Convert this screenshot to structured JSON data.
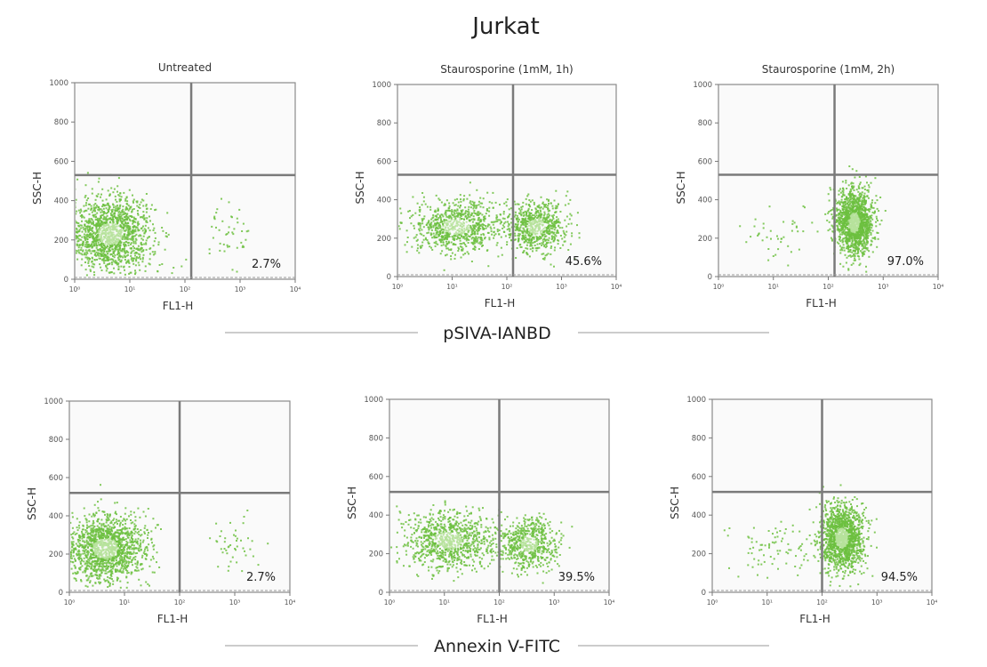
{
  "title": "Jurkat",
  "colors": {
    "dot": "#6cbf3f",
    "dot_light": "#b6e29b",
    "gate": "#7a7a7a",
    "frame": "#8a8a8a",
    "panel_bg": "#fafafa"
  },
  "chart_data": [
    {
      "type": "scatter",
      "row": "pSIVA-IANBD",
      "title": "Untreated",
      "xlabel": "FL1-H",
      "ylabel": "SSC-H",
      "x_scale": "log",
      "xlim": [
        1,
        10000
      ],
      "ylim": [
        0,
        1000
      ],
      "x_ticks": [
        1,
        10,
        100,
        1000,
        10000
      ],
      "y_ticks": [
        0,
        200,
        400,
        600,
        800,
        1000
      ],
      "x_tick_labels": [
        "10⁰",
        "10¹",
        "10²",
        "10³",
        "10⁴"
      ],
      "y_tick_labels": [
        "0",
        "200",
        "400",
        "600",
        "800",
        "1000"
      ],
      "gate": {
        "x": 130,
        "y": 530
      },
      "percent_label": "2.7%",
      "clusters": [
        {
          "center": [
            4.5,
            230
          ],
          "spread_log": 0.38,
          "spread_y": 95,
          "fraction": 0.97
        },
        {
          "center": [
            600,
            220
          ],
          "spread_log": 0.22,
          "spread_y": 80,
          "fraction": 0.03
        }
      ]
    },
    {
      "type": "scatter",
      "row": "pSIVA-IANBD",
      "title": "Staurosporine (1mM, 1h)",
      "xlabel": "FL1-H",
      "ylabel": "SSC-H",
      "x_scale": "log",
      "xlim": [
        1,
        10000
      ],
      "ylim": [
        0,
        1000
      ],
      "x_ticks": [
        1,
        10,
        100,
        1000,
        10000
      ],
      "y_ticks": [
        0,
        200,
        400,
        600,
        800,
        1000
      ],
      "x_tick_labels": [
        "10⁰",
        "10¹",
        "10²",
        "10³",
        "10⁴"
      ],
      "y_tick_labels": [
        "0",
        "200",
        "400",
        "600",
        "800",
        "1000"
      ],
      "gate": {
        "x": 130,
        "y": 530
      },
      "percent_label": "45.6%",
      "clusters": [
        {
          "center": [
            12,
            260
          ],
          "spread_log": 0.42,
          "spread_y": 70,
          "fraction": 0.544
        },
        {
          "center": [
            350,
            260
          ],
          "spread_log": 0.28,
          "spread_y": 70,
          "fraction": 0.456
        }
      ]
    },
    {
      "type": "scatter",
      "row": "pSIVA-IANBD",
      "title": "Staurosporine (1mM, 2h)",
      "xlabel": "FL1-H",
      "ylabel": "SSC-H",
      "x_scale": "log",
      "xlim": [
        1,
        10000
      ],
      "ylim": [
        0,
        1000
      ],
      "x_ticks": [
        1,
        10,
        100,
        1000,
        10000
      ],
      "y_ticks": [
        0,
        200,
        400,
        600,
        800,
        1000
      ],
      "x_tick_labels": [
        "10⁰",
        "10¹",
        "10²",
        "10³",
        "10⁴"
      ],
      "y_tick_labels": [
        "0",
        "200",
        "400",
        "600",
        "800",
        "1000"
      ],
      "gate": {
        "x": 130,
        "y": 530
      },
      "percent_label": "97.0%",
      "clusters": [
        {
          "center": [
            15,
            230
          ],
          "spread_log": 0.4,
          "spread_y": 70,
          "fraction": 0.03
        },
        {
          "center": [
            300,
            280
          ],
          "spread_log": 0.17,
          "spread_y": 85,
          "fraction": 0.97
        }
      ]
    },
    {
      "type": "scatter",
      "row": "Annexin V-FITC",
      "title": "",
      "xlabel": "FL1-H",
      "ylabel": "SSC-H",
      "x_scale": "log",
      "xlim": [
        1,
        10000
      ],
      "ylim": [
        0,
        1000
      ],
      "x_ticks": [
        1,
        10,
        100,
        1000,
        10000
      ],
      "y_ticks": [
        0,
        200,
        400,
        600,
        800,
        1000
      ],
      "x_tick_labels": [
        "10⁰",
        "10¹",
        "10²",
        "10³",
        "10⁴"
      ],
      "y_tick_labels": [
        "0",
        "200",
        "400",
        "600",
        "800",
        "1000"
      ],
      "gate": {
        "x": 100,
        "y": 520
      },
      "percent_label": "2.7%",
      "clusters": [
        {
          "center": [
            4.5,
            230
          ],
          "spread_log": 0.38,
          "spread_y": 90,
          "fraction": 0.97
        },
        {
          "center": [
            900,
            250
          ],
          "spread_log": 0.22,
          "spread_y": 90,
          "fraction": 0.03
        }
      ]
    },
    {
      "type": "scatter",
      "row": "Annexin V-FITC",
      "title": "",
      "xlabel": "FL1-H",
      "ylabel": "SSC-H",
      "x_scale": "log",
      "xlim": [
        1,
        10000
      ],
      "ylim": [
        0,
        1000
      ],
      "x_ticks": [
        1,
        10,
        100,
        1000,
        10000
      ],
      "y_ticks": [
        0,
        200,
        400,
        600,
        800,
        1000
      ],
      "x_tick_labels": [
        "10⁰",
        "10¹",
        "10²",
        "10³",
        "10⁴"
      ],
      "y_tick_labels": [
        "0",
        "200",
        "400",
        "600",
        "800",
        "1000"
      ],
      "gate": {
        "x": 100,
        "y": 520
      },
      "percent_label": "39.5%",
      "clusters": [
        {
          "center": [
            12,
            270
          ],
          "spread_log": 0.42,
          "spread_y": 75,
          "fraction": 0.605
        },
        {
          "center": [
            350,
            250
          ],
          "spread_log": 0.26,
          "spread_y": 70,
          "fraction": 0.395
        }
      ]
    },
    {
      "type": "scatter",
      "row": "Annexin V-FITC",
      "title": "",
      "xlabel": "FL1-H",
      "ylabel": "SSC-H",
      "x_scale": "log",
      "xlim": [
        1,
        10000
      ],
      "ylim": [
        0,
        1000
      ],
      "x_ticks": [
        1,
        10,
        100,
        1000,
        10000
      ],
      "y_ticks": [
        0,
        200,
        400,
        600,
        800,
        1000
      ],
      "x_tick_labels": [
        "10⁰",
        "10¹",
        "10²",
        "10³",
        "10⁴"
      ],
      "y_tick_labels": [
        "0",
        "200",
        "400",
        "600",
        "800",
        "1000"
      ],
      "gate": {
        "x": 100,
        "y": 520
      },
      "percent_label": "94.5%",
      "clusters": [
        {
          "center": [
            15,
            230
          ],
          "spread_log": 0.4,
          "spread_y": 80,
          "fraction": 0.055
        },
        {
          "center": [
            230,
            280
          ],
          "spread_log": 0.2,
          "spread_y": 85,
          "fraction": 0.945
        }
      ]
    }
  ],
  "row_labels": [
    "pSIVA-IANBD",
    "Annexin V-FITC"
  ]
}
